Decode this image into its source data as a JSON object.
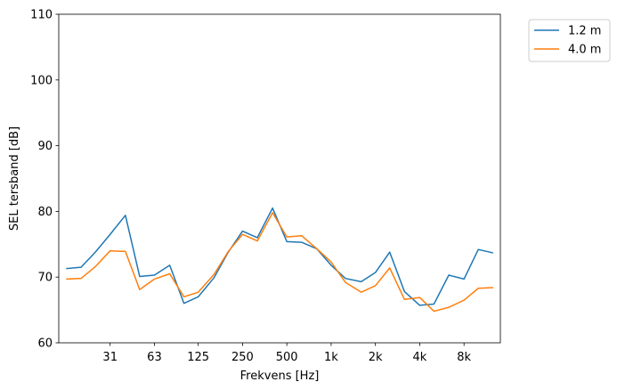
{
  "chart_data": {
    "type": "line",
    "xlabel": "Frekvens [Hz]",
    "ylabel": "SEL tersband [dB]",
    "x_scale": "log",
    "xlim": [
      14.1,
      14125
    ],
    "ylim": [
      60,
      110
    ],
    "x_ticks": [
      {
        "value": 31.5,
        "label": "31"
      },
      {
        "value": 63,
        "label": "63"
      },
      {
        "value": 125,
        "label": "125"
      },
      {
        "value": 250,
        "label": "250"
      },
      {
        "value": 500,
        "label": "500"
      },
      {
        "value": 1000,
        "label": "1k"
      },
      {
        "value": 2000,
        "label": "2k"
      },
      {
        "value": 4000,
        "label": "4k"
      },
      {
        "value": 8000,
        "label": "8k"
      }
    ],
    "y_ticks": [
      60,
      70,
      80,
      90,
      100,
      110
    ],
    "grid": false,
    "legend_position": "outside top-right",
    "x": [
      16,
      20,
      25,
      31.5,
      40,
      50,
      63,
      80,
      100,
      125,
      160,
      200,
      250,
      315,
      400,
      500,
      630,
      800,
      1000,
      1250,
      1600,
      2000,
      2500,
      3150,
      4000,
      5000,
      6300,
      8000,
      10000,
      12500
    ],
    "series": [
      {
        "name": "1.2 m",
        "color": "#1f77b4",
        "values": [
          71.3,
          71.5,
          73.8,
          76.5,
          79.4,
          70.1,
          70.3,
          71.8,
          66.0,
          67.0,
          69.9,
          73.8,
          77.0,
          76.0,
          80.5,
          75.4,
          75.3,
          74.3,
          71.8,
          69.8,
          69.3,
          70.7,
          73.8,
          67.8,
          65.7,
          65.9,
          70.3,
          69.7,
          74.2,
          73.7
        ]
      },
      {
        "name": "4.0 m",
        "color": "#ff7f0e",
        "values": [
          69.7,
          69.8,
          71.6,
          74.0,
          73.9,
          68.1,
          69.7,
          70.5,
          67.0,
          67.7,
          70.4,
          73.9,
          76.5,
          75.5,
          79.8,
          76.1,
          76.3,
          74.3,
          72.3,
          69.2,
          67.7,
          68.7,
          71.4,
          66.6,
          66.9,
          64.8,
          65.4,
          66.5,
          68.3,
          68.4
        ]
      }
    ]
  }
}
